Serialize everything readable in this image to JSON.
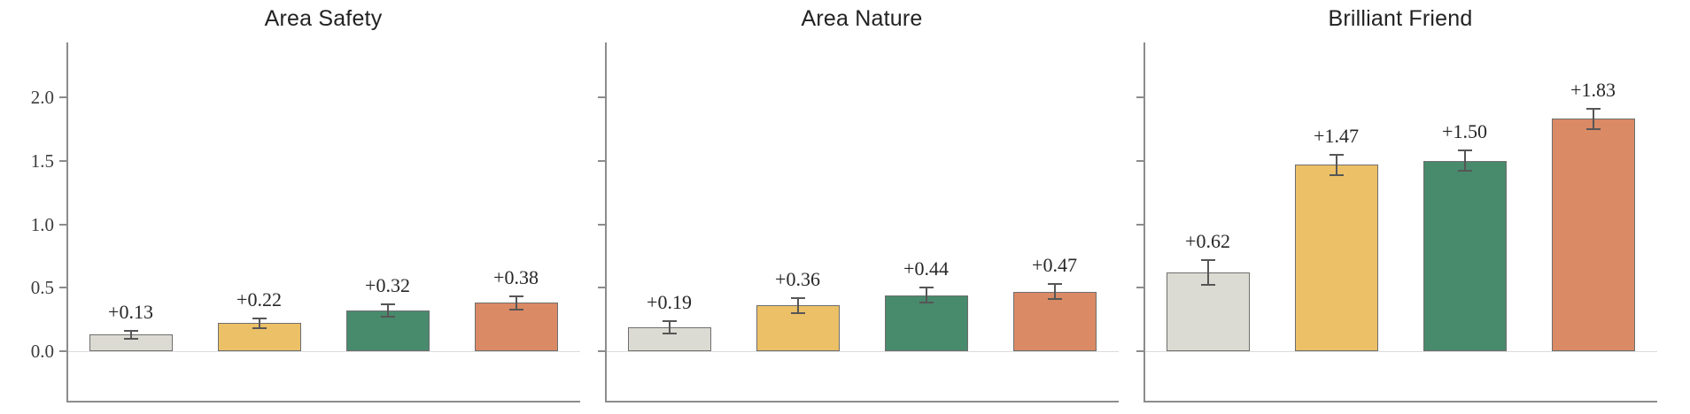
{
  "figure": {
    "background": "#ffffff"
  },
  "style": {
    "bar_colors": [
      "#dcdbd3",
      "#ecc066",
      "#488a6c",
      "#da8a65"
    ],
    "bar_edge_color": "#6e6e6e",
    "error_bar_color": "#565656",
    "spine_color": "#8c8c8c",
    "zero_line_color": "#dcdcdc",
    "title_color": "#222222",
    "value_label_color": "#262626",
    "tick_label_color": "#3c3c3c"
  },
  "chart_data": [
    {
      "type": "bar",
      "title": "Area Safety",
      "values": [
        0.13,
        0.22,
        0.32,
        0.38
      ],
      "errors": [
        0.03,
        0.04,
        0.05,
        0.05
      ],
      "labels": [
        "+0.13",
        "+0.22",
        "+0.32",
        "+0.38"
      ],
      "yticks": [
        0.0,
        0.5,
        1.0,
        1.5,
        2.0
      ],
      "ytick_labels": [
        "0.0",
        "0.5",
        "1.0",
        "1.5",
        "2.0"
      ],
      "show_ytick_labels": true,
      "ylim": [
        -0.4,
        2.43
      ],
      "xlabel": "",
      "ylabel": "",
      "grid": false,
      "legend": "none"
    },
    {
      "type": "bar",
      "title": "Area Nature",
      "values": [
        0.19,
        0.36,
        0.44,
        0.47
      ],
      "errors": [
        0.05,
        0.06,
        0.06,
        0.06
      ],
      "labels": [
        "+0.19",
        "+0.36",
        "+0.44",
        "+0.47"
      ],
      "yticks": [
        0.0,
        0.5,
        1.0,
        1.5,
        2.0
      ],
      "ytick_labels": [],
      "show_ytick_labels": false,
      "ylim": [
        -0.4,
        2.43
      ],
      "xlabel": "",
      "ylabel": "",
      "grid": false,
      "legend": "none"
    },
    {
      "type": "bar",
      "title": "Brilliant Friend",
      "values": [
        0.62,
        1.47,
        1.5,
        1.83
      ],
      "errors": [
        0.1,
        0.08,
        0.08,
        0.08
      ],
      "labels": [
        "+0.62",
        "+1.47",
        "+1.50",
        "+1.83"
      ],
      "yticks": [
        0.0,
        0.5,
        1.0,
        1.5,
        2.0
      ],
      "ytick_labels": [],
      "show_ytick_labels": false,
      "ylim": [
        -0.4,
        2.43
      ],
      "xlabel": "",
      "ylabel": "",
      "grid": false,
      "legend": "none"
    }
  ]
}
